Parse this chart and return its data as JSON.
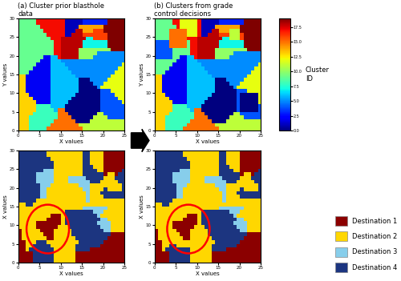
{
  "title_a": "(a) Cluster prior blasthole\ndata",
  "title_b": "(b) Clusters from grade\ncontrol decisions",
  "xlabel": "X values",
  "ylabel_top": "Y values",
  "ylabel_bottom": "X values",
  "colorbar_label": "Cluster\nID",
  "destinations": [
    "Destination 1",
    "Destination 2",
    "Destination 3",
    "Destination 4"
  ],
  "dest_colors": [
    "#8B0000",
    "#FFD700",
    "#87CEEB",
    "#1C3580"
  ],
  "arrow_color": "#000000",
  "circle_color": "red",
  "num_clusters": 20,
  "grid_size": 30
}
